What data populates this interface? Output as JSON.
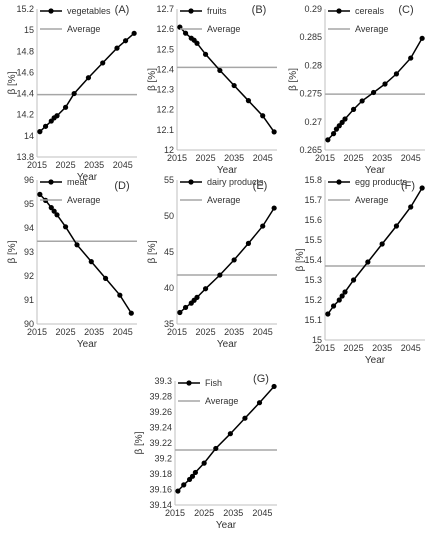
{
  "chart_data": [
    {
      "type": "line",
      "panel_label": "(A)",
      "xlabel": "Year",
      "ylabel": "β [%]",
      "xlim": [
        2015,
        2050
      ],
      "ylim": [
        13.8,
        15.2
      ],
      "xticks": [
        "2015",
        "2025",
        "2035",
        "2045"
      ],
      "yticks": [
        "13.8",
        "14",
        "14.2",
        "14.4",
        "14.6",
        "14.8",
        "15",
        "15.2"
      ],
      "series": [
        {
          "name": "vegetables",
          "x": [
            2016,
            2018,
            2020,
            2021,
            2022,
            2025,
            2028,
            2033,
            2038,
            2043,
            2046,
            2049
          ],
          "y": [
            14.04,
            14.09,
            14.14,
            14.17,
            14.19,
            14.27,
            14.4,
            14.55,
            14.69,
            14.83,
            14.9,
            14.97
          ]
        },
        {
          "name": "Average",
          "x": [
            2015,
            2050
          ],
          "y": [
            14.39,
            14.39
          ]
        }
      ]
    },
    {
      "type": "line",
      "panel_label": "(B)",
      "xlabel": "Year",
      "ylabel": "β [%]",
      "xlim": [
        2015,
        2050
      ],
      "ylim": [
        12.0,
        12.7
      ],
      "xticks": [
        "2015",
        "2025",
        "2035",
        "2045"
      ],
      "yticks": [
        "12",
        "12.1",
        "12.2",
        "12.3",
        "12.4",
        "12.5",
        "12.6",
        "12.7"
      ],
      "series": [
        {
          "name": "fruits",
          "x": [
            2016,
            2018,
            2020,
            2021,
            2022,
            2025,
            2030,
            2035,
            2040,
            2045,
            2049
          ],
          "y": [
            12.61,
            12.58,
            12.555,
            12.545,
            12.53,
            12.475,
            12.395,
            12.32,
            12.245,
            12.17,
            12.09
          ]
        },
        {
          "name": "Average",
          "x": [
            2015,
            2050
          ],
          "y": [
            12.41,
            12.41
          ]
        }
      ]
    },
    {
      "type": "line",
      "panel_label": "(C)",
      "xlabel": "Year",
      "ylabel": "β [%]",
      "xlim": [
        2015,
        2050
      ],
      "ylim": [
        0.265,
        0.29
      ],
      "xticks": [
        "2015",
        "2025",
        "2035",
        "2045"
      ],
      "yticks": [
        "0.265",
        "0.27",
        "0.275",
        "0.28",
        "0.285",
        "0.29"
      ],
      "series": [
        {
          "name": "cereals",
          "x": [
            2016,
            2018,
            2019,
            2020,
            2021,
            2022,
            2025,
            2028,
            2032,
            2036,
            2040,
            2045,
            2049
          ],
          "y": [
            0.2668,
            0.2679,
            0.2687,
            0.2693,
            0.2699,
            0.2705,
            0.2722,
            0.2737,
            0.2752,
            0.2767,
            0.2785,
            0.2813,
            0.2848
          ]
        },
        {
          "name": "Average",
          "x": [
            2015,
            2050
          ],
          "y": [
            0.2749,
            0.2749
          ]
        }
      ]
    },
    {
      "type": "line",
      "panel_label": "(D)",
      "xlabel": "Year",
      "ylabel": "β [%]",
      "xlim": [
        2015,
        2050
      ],
      "ylim": [
        90,
        96
      ],
      "xticks": [
        "2015",
        "2025",
        "2035",
        "2045"
      ],
      "yticks": [
        "90",
        "91",
        "92",
        "93",
        "94",
        "95",
        "96"
      ],
      "series": [
        {
          "name": "meat",
          "x": [
            2016,
            2018,
            2020,
            2021,
            2022,
            2025,
            2029,
            2034,
            2039,
            2044,
            2048
          ],
          "y": [
            95.4,
            95.15,
            94.85,
            94.7,
            94.55,
            94.05,
            93.3,
            92.6,
            91.9,
            91.2,
            90.45
          ]
        },
        {
          "name": "Average",
          "x": [
            2015,
            2050
          ],
          "y": [
            93.45,
            93.45
          ]
        }
      ]
    },
    {
      "type": "line",
      "panel_label": "(E)",
      "xlabel": "Year",
      "ylabel": "β [%]",
      "xlim": [
        2015,
        2050
      ],
      "ylim": [
        35,
        55
      ],
      "xticks": [
        "2015",
        "2025",
        "2035",
        "2045"
      ],
      "yticks": [
        "35",
        "40",
        "45",
        "50",
        "55"
      ],
      "series": [
        {
          "name": "dairy products",
          "x": [
            2016,
            2018,
            2020,
            2021,
            2022,
            2025,
            2030,
            2035,
            2040,
            2045,
            2049
          ],
          "y": [
            36.6,
            37.3,
            37.9,
            38.3,
            38.7,
            39.9,
            41.8,
            43.9,
            46.2,
            48.6,
            51.1
          ]
        },
        {
          "name": "Average",
          "x": [
            2015,
            2050
          ],
          "y": [
            41.8,
            41.8
          ]
        }
      ]
    },
    {
      "type": "line",
      "panel_label": "(F)",
      "xlabel": "Year",
      "ylabel": "β [%]",
      "xlim": [
        2015,
        2050
      ],
      "ylim": [
        15.0,
        15.8
      ],
      "xticks": [
        "2015",
        "2025",
        "2035",
        "2045"
      ],
      "yticks": [
        "15",
        "15.1",
        "15.2",
        "15.3",
        "15.4",
        "15.5",
        "15.6",
        "15.7",
        "15.8"
      ],
      "series": [
        {
          "name": "egg products",
          "x": [
            2016,
            2018,
            2020,
            2021,
            2022,
            2025,
            2030,
            2035,
            2040,
            2045,
            2049
          ],
          "y": [
            15.13,
            15.17,
            15.2,
            15.22,
            15.24,
            15.3,
            15.39,
            15.48,
            15.57,
            15.665,
            15.76
          ]
        },
        {
          "name": "Average",
          "x": [
            2015,
            2050
          ],
          "y": [
            15.37,
            15.37
          ]
        }
      ]
    },
    {
      "type": "line",
      "panel_label": "(G)",
      "xlabel": "Year",
      "ylabel": "β [%]",
      "xlim": [
        2015,
        2050
      ],
      "ylim": [
        39.14,
        39.3
      ],
      "xticks": [
        "2015",
        "2025",
        "2035",
        "2045"
      ],
      "yticks": [
        "39.14",
        "39.16",
        "39.18",
        "39.2",
        "39.22",
        "39.24",
        "39.26",
        "39.28",
        "39.3"
      ],
      "series": [
        {
          "name": "Fish",
          "x": [
            2016,
            2018,
            2020,
            2021,
            2022,
            2025,
            2029,
            2034,
            2039,
            2044,
            2049
          ],
          "y": [
            39.158,
            39.166,
            39.173,
            39.177,
            39.182,
            39.194,
            39.213,
            39.232,
            39.252,
            39.272,
            39.293
          ]
        },
        {
          "name": "Average",
          "x": [
            2015,
            2050
          ],
          "y": [
            39.211,
            39.211
          ]
        }
      ]
    }
  ],
  "colors": {
    "series_line": "#000000",
    "average_line": "#a6a6a6",
    "text": "#333333",
    "axis": "#bfbfbf"
  }
}
